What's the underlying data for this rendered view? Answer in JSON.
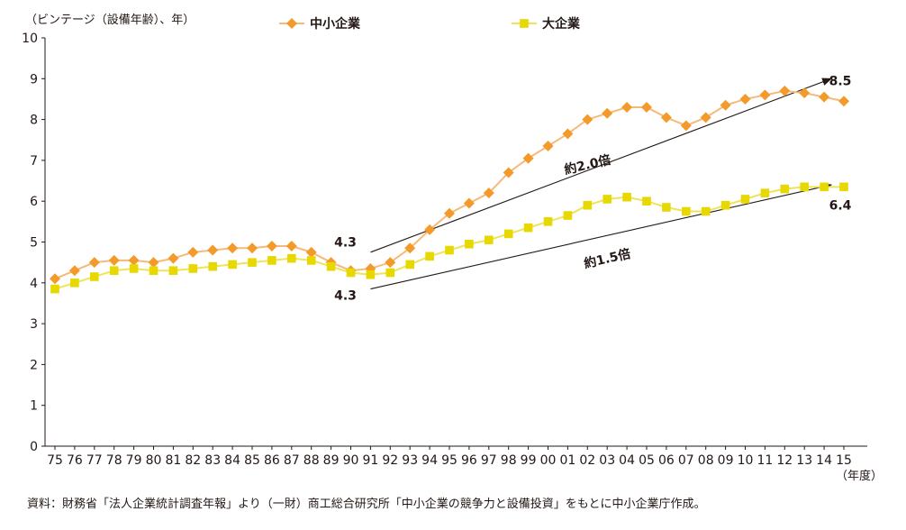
{
  "chart_data": {
    "type": "line",
    "ylabel": "（ビンテージ（設備年齢）、年）",
    "xunit": "（年度）",
    "ylim": [
      0,
      10
    ],
    "yticks": [
      0,
      1,
      2,
      3,
      4,
      5,
      6,
      7,
      8,
      9,
      10
    ],
    "categories": [
      "75",
      "76",
      "77",
      "78",
      "79",
      "80",
      "81",
      "82",
      "83",
      "84",
      "85",
      "86",
      "87",
      "88",
      "89",
      "90",
      "91",
      "92",
      "93",
      "94",
      "95",
      "96",
      "97",
      "98",
      "99",
      "00",
      "01",
      "02",
      "03",
      "04",
      "05",
      "06",
      "07",
      "08",
      "09",
      "10",
      "11",
      "12",
      "13",
      "14",
      "15"
    ],
    "series": [
      {
        "name": "中小企業",
        "color": "#f39a2b",
        "line_color": "#f6b97a",
        "marker": "diamond",
        "values": [
          4.1,
          4.3,
          4.5,
          4.55,
          4.55,
          4.5,
          4.6,
          4.75,
          4.8,
          4.85,
          4.85,
          4.9,
          4.9,
          4.75,
          4.5,
          4.3,
          4.35,
          4.5,
          4.85,
          5.3,
          5.7,
          5.95,
          6.2,
          6.7,
          7.05,
          7.35,
          7.65,
          8.0,
          8.15,
          8.3,
          8.3,
          8.05,
          7.85,
          8.05,
          8.35,
          8.5,
          8.6,
          8.7,
          8.65,
          8.55,
          8.45
        ]
      },
      {
        "name": "大企業",
        "color": "#e6d800",
        "line_color": "#ede45a",
        "marker": "square",
        "values": [
          3.85,
          4.0,
          4.15,
          4.3,
          4.35,
          4.3,
          4.3,
          4.35,
          4.4,
          4.45,
          4.5,
          4.55,
          4.6,
          4.55,
          4.4,
          4.25,
          4.2,
          4.25,
          4.45,
          4.65,
          4.8,
          4.95,
          5.05,
          5.2,
          5.35,
          5.5,
          5.65,
          5.9,
          6.05,
          6.1,
          6.0,
          5.85,
          5.75,
          5.75,
          5.9,
          6.05,
          6.2,
          6.3,
          6.35,
          6.35,
          6.35
        ]
      }
    ],
    "annotations": [
      {
        "text": "4.3",
        "x": "90",
        "y": 5.0,
        "role": "start-label-sme"
      },
      {
        "text": "4.3",
        "x": "90",
        "y": 3.7,
        "role": "start-label-large"
      },
      {
        "text": "8.5",
        "x": "15",
        "y": 8.95,
        "role": "end-label-sme"
      },
      {
        "text": "6.4",
        "x": "15",
        "y": 5.9,
        "role": "end-label-large"
      },
      {
        "text": "約2.0倍",
        "x": "02",
        "y": 6.9,
        "role": "ratio-sme"
      },
      {
        "text": "約1.5倍",
        "x": "03",
        "y": 4.6,
        "role": "ratio-large"
      }
    ],
    "arrows": [
      {
        "from": [
          "90",
          4.75
        ],
        "to": [
          "15",
          9.0
        ]
      },
      {
        "from": [
          "90",
          3.85
        ],
        "to": [
          "15",
          6.4
        ]
      }
    ]
  },
  "source_note": "資料：財務省「法人企業統計調査年報」より（一財）商工総合研究所「中小企業の競争力と設備投資」をもとに中小企業庁作成。"
}
